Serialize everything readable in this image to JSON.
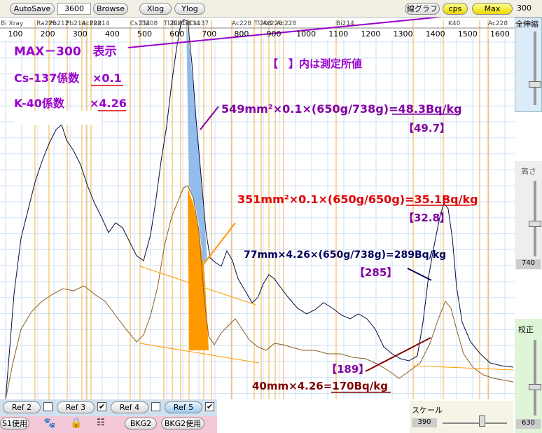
{
  "toolbar": {
    "autosave": "AutoSave",
    "time": "3600",
    "browse": "Browse",
    "xlog": "Xlog",
    "ylog": "Ylog",
    "line_graph": "線グラフ",
    "cps": "cps",
    "max": "Max",
    "max_value": "300"
  },
  "plot": {
    "x_ticks": [
      100,
      200,
      300,
      400,
      500,
      600,
      700,
      800,
      900,
      1000,
      1100,
      1200,
      1300,
      1400,
      1500,
      1600
    ],
    "nuclides": [
      "Bi Xray",
      "Ra226",
      "Pb212",
      "Pb214",
      "Ac228",
      "Pb214",
      "Cs134",
      "Tl208",
      "Tl208",
      "Bi214",
      "Cs134",
      "Cs137",
      "Ac228",
      "Tl208",
      "Ac228",
      "Ac228",
      "Bi214",
      "K40",
      "Ac228"
    ],
    "annotations": {
      "max_note": "MAX－300　表示",
      "cs_coef_label": "Cs-137係数",
      "cs_coef": "×0.1",
      "k_coef_label": "K-40係数",
      "k_coef": "×4.26",
      "bracket_note": "【　】内は測定所値",
      "cs_sample": "549mm²×0.1×(650g/738g)=48.3Bq/kg",
      "cs_sample_lab": "【49.7】",
      "cs_ref": "351mm²×0.1×(650g/650g)=35.1Bq/kg",
      "cs_ref_lab": "【32.8】",
      "k_sample": "77mm×4.26×(650g/738g)=289Bq/kg",
      "k_sample_lab": "【285】",
      "k_ref_lab": "【189】",
      "k_ref": "40mm×4.26=170Bq/kg"
    }
  },
  "side_panel": {
    "zoom_all": "全伸縮",
    "height": "高さ",
    "height_value": "740",
    "calibration": "校正",
    "calibration_value": "630"
  },
  "bottom": {
    "refs": [
      "Ref 2",
      "Ref 3",
      "Ref 4",
      "Ref 5"
    ],
    "s1": "S1使用",
    "bkg2": "BKG2",
    "bkg2_use": "BKG2使用",
    "scale": "スケール",
    "scale_value": "390"
  }
}
